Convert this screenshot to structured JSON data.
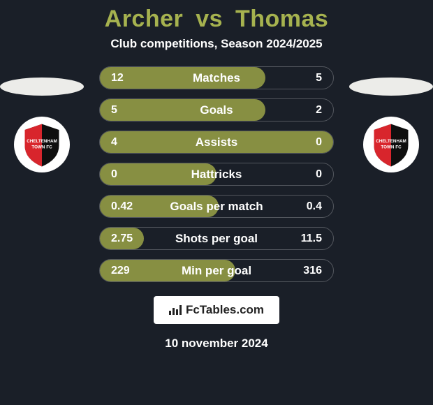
{
  "title": {
    "player1": "Archer",
    "vs": "vs",
    "player2": "Thomas",
    "color": "#a6b24f"
  },
  "subtitle": "Club competitions, Season 2024/2025",
  "background_color": "#1a1f28",
  "sides": {
    "left": {
      "oval_color": "#ecece9",
      "crest_text1": "CHELTENHAM",
      "crest_text2": "TOWN FC",
      "crest_red": "#d8252c",
      "crest_black": "#0f0f0f"
    },
    "right": {
      "oval_color": "#ecece9",
      "crest_text1": "CHELTENHAM",
      "crest_text2": "TOWN FC",
      "crest_red": "#d8252c",
      "crest_black": "#0f0f0f"
    }
  },
  "stats": {
    "row_border_color": "rgba(255,255,255,0.25)",
    "fill_color": "#878f42",
    "text_color": "#ffffff",
    "rows": [
      {
        "label": "Matches",
        "left": "12",
        "right": "5",
        "fill_pct": 71
      },
      {
        "label": "Goals",
        "left": "5",
        "right": "2",
        "fill_pct": 71
      },
      {
        "label": "Assists",
        "left": "4",
        "right": "0",
        "fill_pct": 100
      },
      {
        "label": "Hattricks",
        "left": "0",
        "right": "0",
        "fill_pct": 50
      },
      {
        "label": "Goals per match",
        "left": "0.42",
        "right": "0.4",
        "fill_pct": 51
      },
      {
        "label": "Shots per goal",
        "left": "2.75",
        "right": "11.5",
        "fill_pct": 19
      },
      {
        "label": "Min per goal",
        "left": "229",
        "right": "316",
        "fill_pct": 58
      }
    ]
  },
  "watermark": {
    "text": "FcTables.com",
    "bg": "#ffffff",
    "color": "#222222"
  },
  "date": "10 november 2024"
}
